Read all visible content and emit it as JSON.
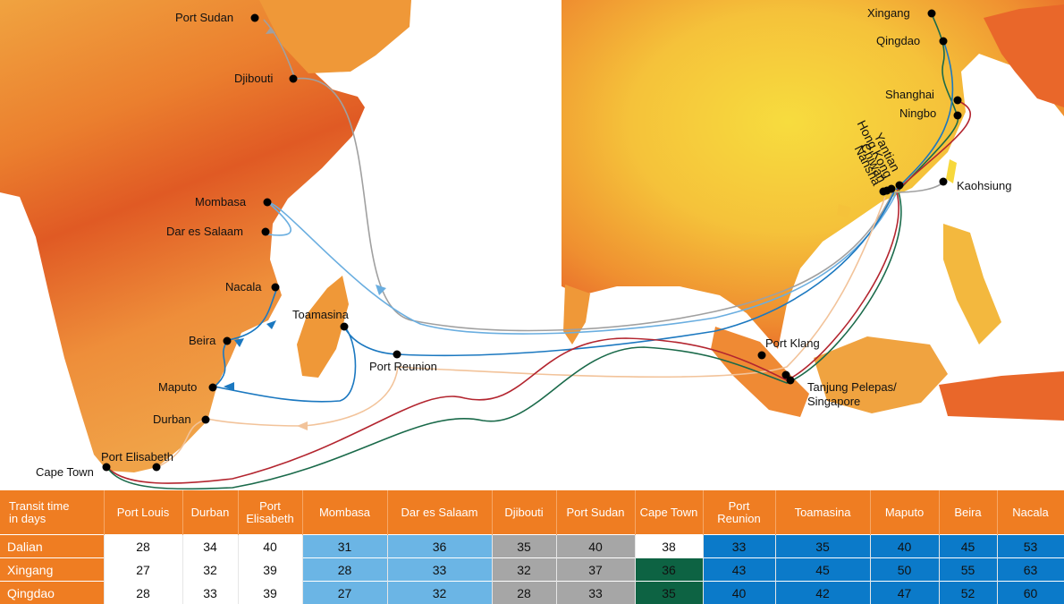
{
  "colors": {
    "route_grey": "#a0a0a0",
    "route_light_blue": "#6aaee0",
    "route_dark_blue": "#1b78c0",
    "route_peach": "#f2c39a",
    "route_red": "#b3252f",
    "route_green": "#1a6a4a",
    "header_orange": "#ef7d22"
  },
  "ports": {
    "port_sudan": "Port Sudan",
    "djibouti": "Djibouti",
    "mombasa": "Mombasa",
    "dar_es_salaam": "Dar es Salaam",
    "nacala": "Nacala",
    "toamasina": "Toamasina",
    "beira": "Beira",
    "port_reunion": "Port Reunion",
    "maputo": "Maputo",
    "durban": "Durban",
    "port_elisabeth": "Port Elisabeth",
    "cape_town": "Cape Town",
    "xingang": "Xingang",
    "qingdao": "Qingdao",
    "shanghai": "Shanghai",
    "ningbo": "Ningbo",
    "yantian": "Yantian",
    "hong_kong": "Hong Kong",
    "chiwan": "Chiwan",
    "nansha": "Nansha",
    "kaohsiung": "Kaohsiung",
    "port_klang": "Port Klang",
    "tanjung_line1": "Tanjung Pelepas/",
    "tanjung_line2": "Singapore"
  },
  "table": {
    "corner_line1": "Transit time",
    "corner_line2": "in days",
    "columns": [
      [
        "Port Louis"
      ],
      [
        "Durban"
      ],
      [
        "Port",
        "Elisabeth"
      ],
      [
        "Mombasa"
      ],
      [
        "Dar es Salaam"
      ],
      [
        "Djibouti"
      ],
      [
        "Port Sudan"
      ],
      [
        "Cape Town"
      ],
      [
        "Port",
        "Reunion"
      ],
      [
        "Toamasina"
      ],
      [
        "Maputo"
      ],
      [
        "Beira"
      ],
      [
        "Nacala"
      ]
    ],
    "column_groups": [
      "w",
      "w",
      "w",
      "lb",
      "lb",
      "gr",
      "gr",
      "w",
      "db",
      "db",
      "db",
      "db",
      "db"
    ],
    "rows": [
      {
        "origin": "Dalian",
        "cape_town_group": "w",
        "values": [
          "28",
          "34",
          "40",
          "31",
          "36",
          "35",
          "40",
          "38",
          "33",
          "35",
          "40",
          "45",
          "53"
        ]
      },
      {
        "origin": "Xingang",
        "cape_town_group": "dg",
        "values": [
          "27",
          "32",
          "39",
          "28",
          "33",
          "32",
          "37",
          "36",
          "43",
          "45",
          "50",
          "55",
          "63"
        ]
      },
      {
        "origin": "Qingdao",
        "cape_town_group": "dg",
        "values": [
          "28",
          "33",
          "39",
          "27",
          "32",
          "28",
          "33",
          "35",
          "40",
          "42",
          "47",
          "52",
          "60"
        ]
      }
    ]
  }
}
